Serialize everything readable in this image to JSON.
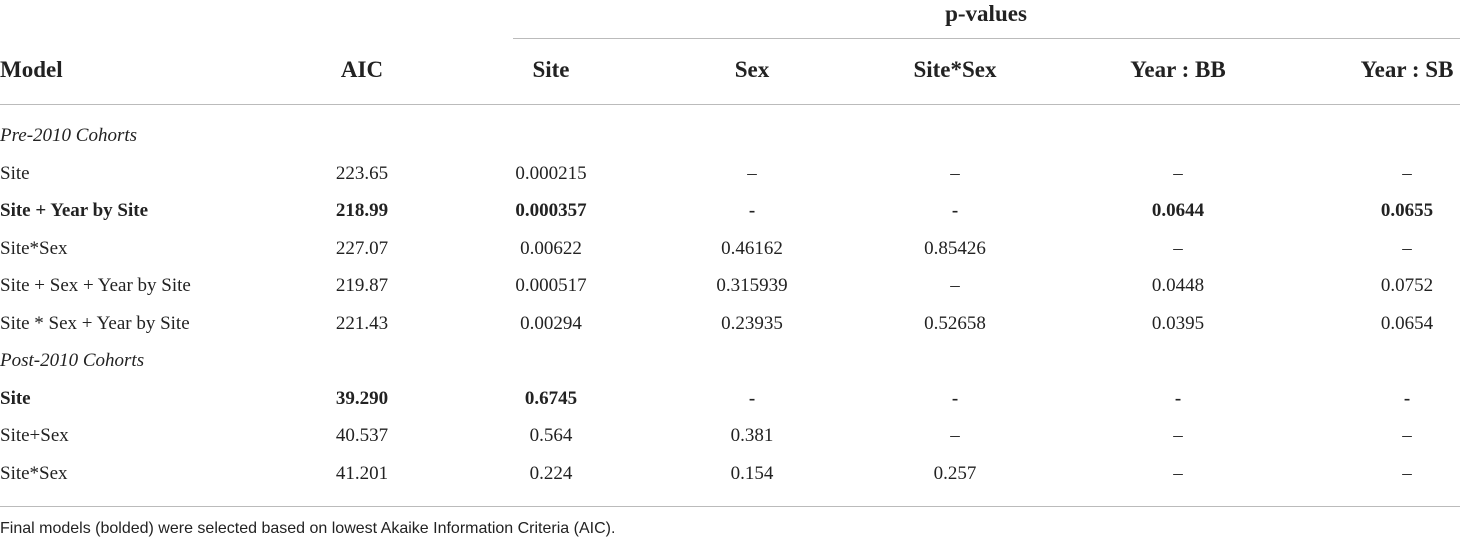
{
  "table": {
    "group_header": "p-values",
    "columns": [
      "Model",
      "AIC",
      "Site",
      "Sex",
      "Site*Sex",
      "Year : BB",
      "Year : SB"
    ],
    "sections": [
      {
        "title": "Pre-2010 Cohorts",
        "rows": [
          {
            "cells": [
              "Site",
              "223.65",
              "0.000215",
              "–",
              "–",
              "–",
              "–"
            ],
            "bold": false
          },
          {
            "cells": [
              "Site + Year by Site",
              "218.99",
              "0.000357",
              "-",
              "-",
              "0.0644",
              "0.0655"
            ],
            "bold": true
          },
          {
            "cells": [
              "Site*Sex",
              "227.07",
              "0.00622",
              "0.46162",
              "0.85426",
              "–",
              "–"
            ],
            "bold": false
          },
          {
            "cells": [
              "Site + Sex + Year by Site",
              "219.87",
              "0.000517",
              "0.315939",
              "–",
              "0.0448",
              "0.0752"
            ],
            "bold": false
          },
          {
            "cells": [
              "Site * Sex + Year by Site",
              "221.43",
              "0.00294",
              "0.23935",
              "0.52658",
              "0.0395",
              "0.0654"
            ],
            "bold": false
          }
        ]
      },
      {
        "title": "Post-2010 Cohorts",
        "rows": [
          {
            "cells": [
              "Site",
              "39.290",
              "0.6745",
              "-",
              "-",
              "-",
              "-"
            ],
            "bold": true
          },
          {
            "cells": [
              "Site+Sex",
              "40.537",
              "0.564",
              "0.381",
              "–",
              "–",
              "–"
            ],
            "bold": false
          },
          {
            "cells": [
              "Site*Sex",
              "41.201",
              "0.224",
              "0.154",
              "0.257",
              "–",
              "–"
            ],
            "bold": false
          }
        ]
      }
    ],
    "footnote": "Final models (bolded) were selected based on lowest Akaike Information Criteria (AIC)."
  }
}
